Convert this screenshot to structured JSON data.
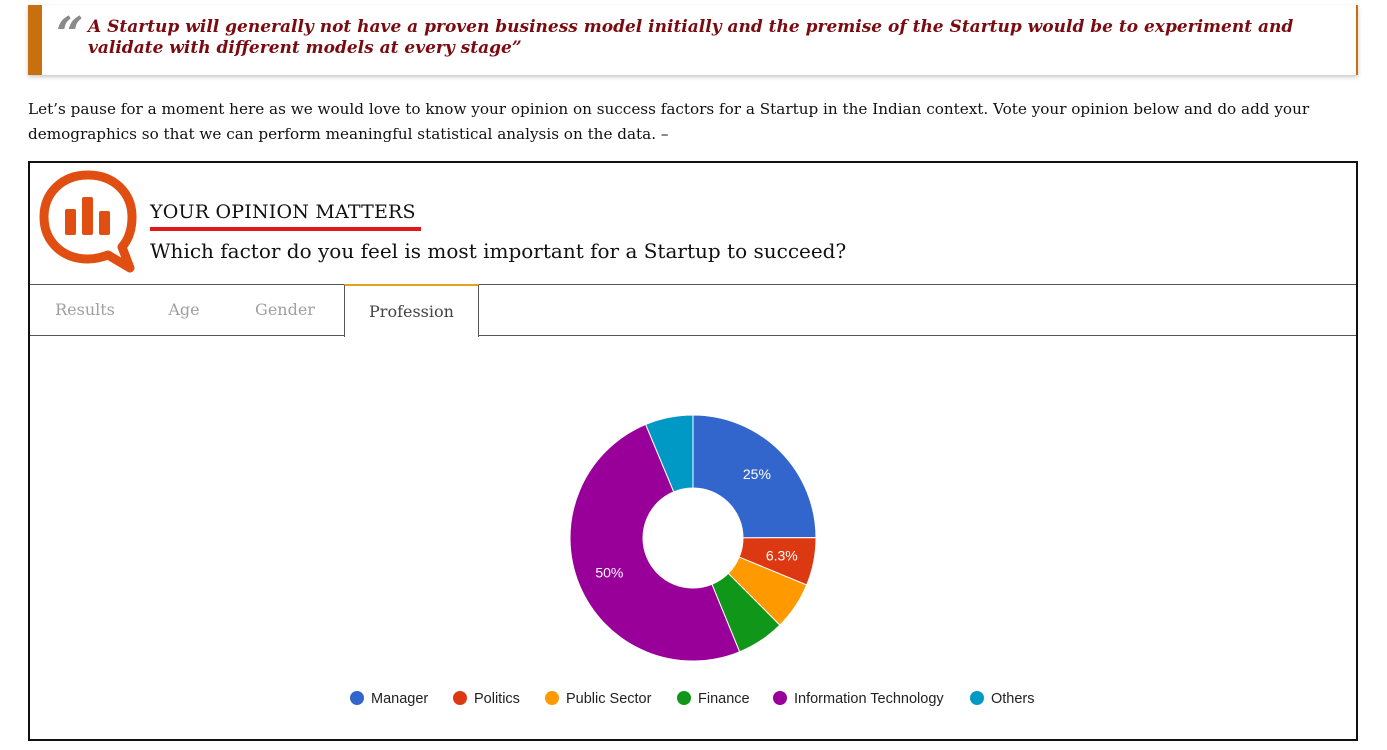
{
  "quote": {
    "mark": "“",
    "text": "A Startup will generally not have a proven business model initially and the premise of the Startup would be to experiment and validate with different models at every stage”"
  },
  "intro": "Let’s pause for a moment here as we would love to know your opinion on success factors for a Startup in the Indian context. Vote your opinion below and do add your demographics so that we can perform meaningful statistical analysis on the data. –",
  "poll": {
    "logo_icon": "poll-chat-bubble-icon",
    "title": "YOUR OPINION MATTERS",
    "question": "Which factor do you feel is most important for a Startup to succeed?",
    "tabs": [
      {
        "label": "Results",
        "active": false
      },
      {
        "label": "Age",
        "active": false
      },
      {
        "label": "Gender",
        "active": false
      },
      {
        "label": "Profession",
        "active": true
      }
    ]
  },
  "colors": {
    "accent": "#c8700f",
    "quote_text": "#7a0b10",
    "title_underline": "#e2181c",
    "logo": "#e04e12"
  },
  "chart_data": {
    "type": "pie",
    "donut": true,
    "categories": [
      "Manager",
      "Politics",
      "Public Sector",
      "Finance",
      "Information Technology",
      "Others"
    ],
    "values": [
      25,
      6.3,
      6.3,
      6.3,
      50,
      6.3
    ],
    "colors": [
      "#3366cc",
      "#dc3912",
      "#ff9900",
      "#109618",
      "#990099",
      "#0099c6"
    ],
    "data_labels": [
      "25%",
      "6.3%",
      "",
      "",
      "50%",
      ""
    ],
    "legend_position": "bottom"
  }
}
